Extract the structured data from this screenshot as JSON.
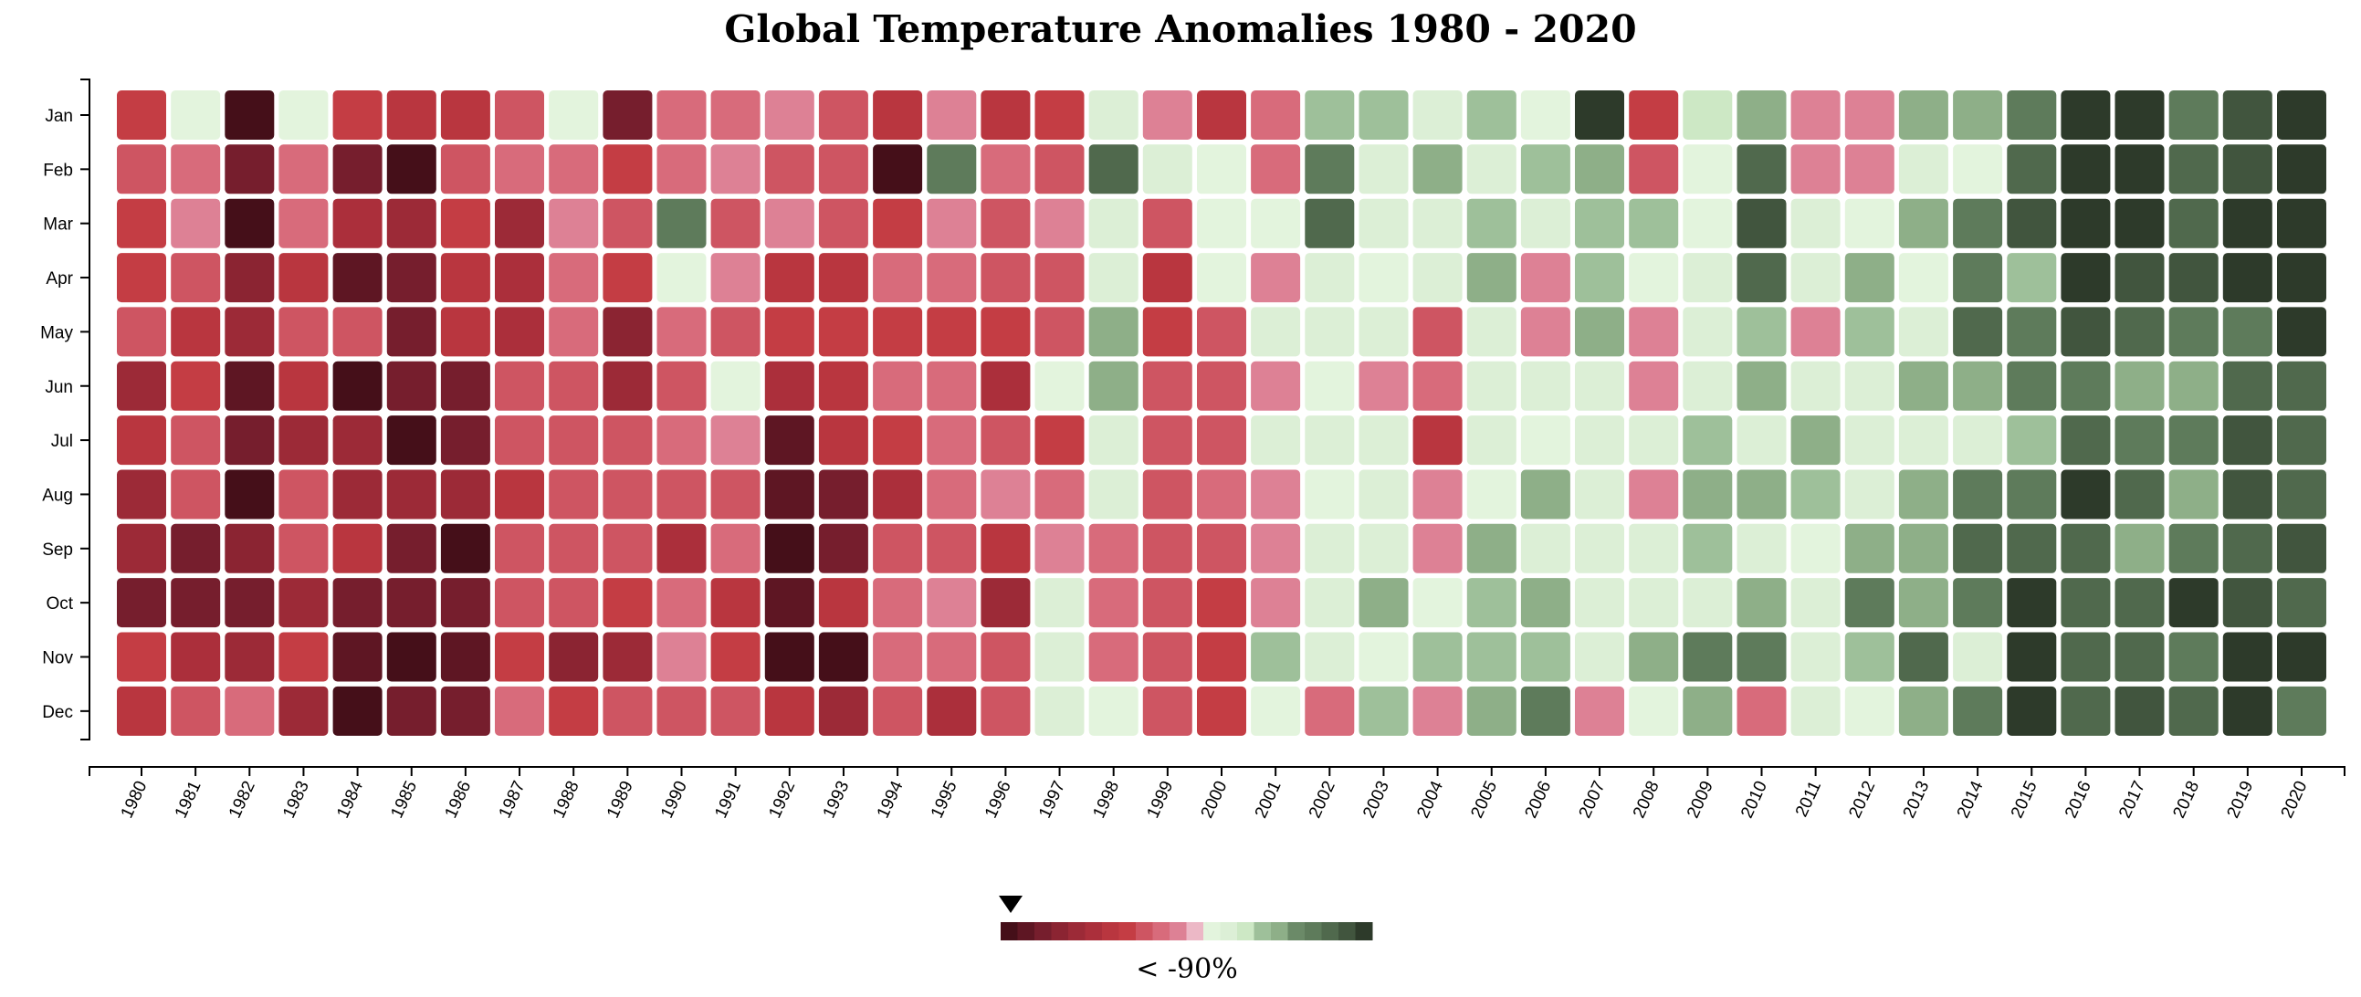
{
  "chart_data": {
    "type": "heatmap",
    "title": "Global Temperature Anomalies 1980 - 2020",
    "x": [
      "1980",
      "1981",
      "1982",
      "1983",
      "1984",
      "1985",
      "1986",
      "1987",
      "1988",
      "1989",
      "1990",
      "1991",
      "1992",
      "1993",
      "1994",
      "1995",
      "1996",
      "1997",
      "1998",
      "1999",
      "2000",
      "2001",
      "2002",
      "2003",
      "2004",
      "2005",
      "2006",
      "2007",
      "2008",
      "2009",
      "2010",
      "2011",
      "2012",
      "2013",
      "2014",
      "2015",
      "2016",
      "2017",
      "2018",
      "2019",
      "2020"
    ],
    "y": [
      "Jan",
      "Feb",
      "Mar",
      "Apr",
      "May",
      "Jun",
      "Jul",
      "Aug",
      "Sep",
      "Oct",
      "Nov",
      "Dec"
    ],
    "value_unit": "color level (0 = coldest, 21 = warmest)",
    "values": [
      [
        7,
        12,
        0,
        12,
        7,
        6,
        6,
        8,
        12,
        2,
        9,
        9,
        10,
        8,
        6,
        10,
        6,
        7,
        13,
        10,
        6,
        9,
        15,
        15,
        13,
        15,
        12,
        21,
        7,
        14,
        16,
        10,
        10,
        16,
        16,
        18,
        21,
        21,
        18,
        20,
        21
      ],
      [
        8,
        9,
        2,
        9,
        2,
        0,
        8,
        9,
        9,
        7,
        9,
        10,
        8,
        8,
        0,
        18,
        9,
        8,
        19,
        13,
        12,
        9,
        18,
        13,
        16,
        13,
        15,
        16,
        8,
        12,
        19,
        10,
        10,
        13,
        12,
        19,
        21,
        21,
        19,
        20,
        21
      ],
      [
        7,
        10,
        0,
        9,
        5,
        4,
        7,
        4,
        10,
        8,
        18,
        8,
        10,
        8,
        7,
        10,
        8,
        10,
        13,
        8,
        12,
        12,
        19,
        13,
        13,
        15,
        13,
        15,
        15,
        12,
        20,
        13,
        12,
        16,
        18,
        20,
        21,
        21,
        19,
        21,
        21
      ],
      [
        7,
        8,
        3,
        6,
        1,
        2,
        6,
        5,
        9,
        7,
        12,
        10,
        6,
        6,
        9,
        9,
        8,
        8,
        13,
        6,
        12,
        10,
        13,
        12,
        13,
        16,
        10,
        15,
        12,
        13,
        19,
        13,
        16,
        12,
        18,
        15,
        21,
        20,
        20,
        21,
        21
      ],
      [
        8,
        6,
        4,
        8,
        8,
        2,
        6,
        5,
        9,
        3,
        9,
        8,
        7,
        7,
        7,
        7,
        7,
        8,
        16,
        7,
        8,
        13,
        13,
        13,
        8,
        13,
        10,
        16,
        10,
        13,
        15,
        10,
        15,
        13,
        19,
        18,
        20,
        19,
        18,
        18,
        21
      ],
      [
        4,
        7,
        1,
        6,
        0,
        2,
        2,
        8,
        8,
        4,
        8,
        12,
        5,
        6,
        9,
        9,
        5,
        12,
        16,
        8,
        8,
        10,
        12,
        10,
        9,
        13,
        13,
        13,
        10,
        13,
        16,
        13,
        13,
        16,
        16,
        18,
        18,
        16,
        16,
        19,
        19
      ],
      [
        6,
        8,
        2,
        4,
        4,
        0,
        2,
        8,
        8,
        8,
        9,
        10,
        1,
        6,
        7,
        9,
        8,
        7,
        13,
        8,
        8,
        13,
        13,
        13,
        6,
        13,
        12,
        13,
        13,
        15,
        13,
        16,
        13,
        13,
        13,
        15,
        19,
        18,
        18,
        20,
        19
      ],
      [
        4,
        8,
        0,
        8,
        4,
        4,
        4,
        6,
        8,
        8,
        8,
        8,
        1,
        2,
        5,
        9,
        10,
        9,
        13,
        8,
        9,
        10,
        12,
        13,
        10,
        12,
        16,
        13,
        10,
        16,
        16,
        15,
        13,
        16,
        18,
        18,
        21,
        19,
        16,
        20,
        19
      ],
      [
        4,
        2,
        3,
        8,
        6,
        2,
        0,
        8,
        8,
        8,
        5,
        9,
        0,
        2,
        8,
        8,
        6,
        10,
        9,
        8,
        8,
        10,
        13,
        13,
        10,
        16,
        13,
        13,
        13,
        15,
        13,
        12,
        16,
        16,
        19,
        19,
        19,
        16,
        18,
        19,
        20
      ],
      [
        2,
        2,
        2,
        4,
        2,
        2,
        2,
        8,
        8,
        7,
        9,
        6,
        1,
        6,
        9,
        10,
        4,
        13,
        9,
        8,
        7,
        10,
        13,
        16,
        12,
        15,
        16,
        13,
        13,
        13,
        16,
        13,
        18,
        16,
        18,
        21,
        19,
        19,
        21,
        20,
        19
      ],
      [
        7,
        5,
        4,
        7,
        1,
        0,
        1,
        7,
        3,
        4,
        10,
        7,
        0,
        0,
        9,
        9,
        8,
        13,
        9,
        8,
        7,
        15,
        13,
        12,
        15,
        15,
        15,
        13,
        16,
        18,
        18,
        13,
        15,
        19,
        13,
        21,
        19,
        19,
        18,
        21,
        21
      ],
      [
        6,
        8,
        9,
        4,
        0,
        2,
        2,
        9,
        7,
        8,
        8,
        8,
        6,
        4,
        8,
        5,
        8,
        13,
        12,
        8,
        7,
        12,
        9,
        15,
        10,
        16,
        18,
        10,
        12,
        16,
        9,
        13,
        12,
        16,
        18,
        21,
        19,
        20,
        19,
        21,
        18
      ]
    ],
    "color_scale": [
      "#450f19",
      "#5e1623",
      "#761e2d",
      "#8b2432",
      "#9c2a37",
      "#ab2f3b",
      "#b9363f",
      "#c43d44",
      "#ce5562",
      "#d86b7b",
      "#dd8195",
      "#ecb8c6",
      "#e3f4dd",
      "#dcefd6",
      "#cde8c5",
      "#9ec09a",
      "#8eaf88",
      "#6b8a68",
      "#5e7b5b",
      "#50694d",
      "#41553e",
      "#2d3a2a"
    ],
    "grid": false,
    "legend": {
      "position": "bottom-center",
      "label": "< -90%"
    }
  }
}
